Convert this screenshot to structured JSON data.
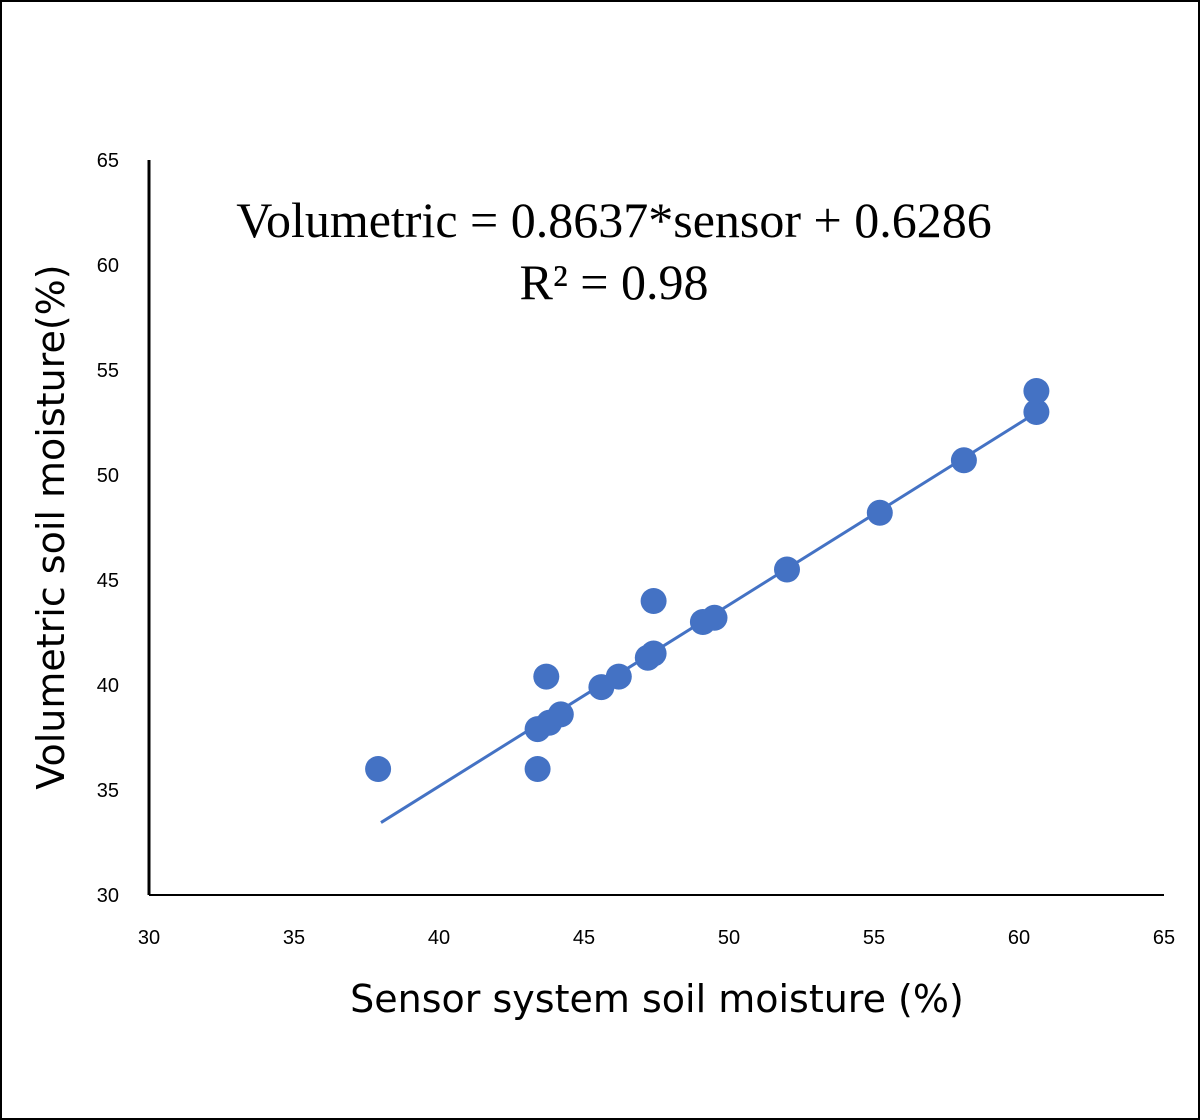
{
  "chart_data": {
    "type": "scatter",
    "xlabel": "Sensor system soil moisture (%)",
    "ylabel": "Volumetric soil moisture(%)",
    "xlim": [
      30,
      65
    ],
    "ylim": [
      30,
      65
    ],
    "xticks": [
      30,
      35,
      40,
      45,
      50,
      55,
      60,
      65
    ],
    "yticks": [
      30,
      35,
      40,
      45,
      50,
      55,
      60,
      65
    ],
    "grid": false,
    "marker_color": "#4472C4",
    "points": [
      {
        "x": 37.9,
        "y": 36.0
      },
      {
        "x": 43.4,
        "y": 36.0
      },
      {
        "x": 43.4,
        "y": 37.9
      },
      {
        "x": 43.8,
        "y": 38.2
      },
      {
        "x": 44.2,
        "y": 38.6
      },
      {
        "x": 43.7,
        "y": 40.4
      },
      {
        "x": 45.6,
        "y": 39.9
      },
      {
        "x": 46.2,
        "y": 40.4
      },
      {
        "x": 47.2,
        "y": 41.3
      },
      {
        "x": 47.4,
        "y": 41.5
      },
      {
        "x": 47.4,
        "y": 44.0
      },
      {
        "x": 49.1,
        "y": 43.0
      },
      {
        "x": 49.5,
        "y": 43.2
      },
      {
        "x": 52.0,
        "y": 45.5
      },
      {
        "x": 55.2,
        "y": 48.2
      },
      {
        "x": 58.1,
        "y": 50.7
      },
      {
        "x": 60.6,
        "y": 53.0
      },
      {
        "x": 60.6,
        "y": 54.0
      }
    ],
    "trendline": {
      "slope": 0.8637,
      "intercept": 0.6286,
      "x_range": [
        38,
        60.6
      ]
    },
    "annotations": {
      "equation": "Volumetric = 0.8637*sensor + 0.6286",
      "r_squared": "R² = 0.98"
    }
  }
}
